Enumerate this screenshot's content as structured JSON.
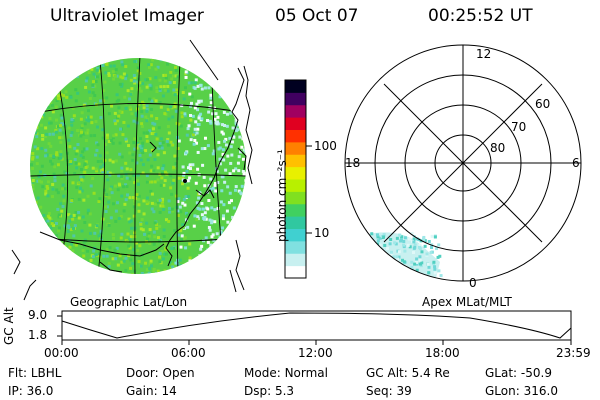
{
  "header": {
    "instrument": "Ultraviolet Imager",
    "date": "05 Oct 07",
    "time": "00:25:52 UT"
  },
  "colorbar": {
    "label": "photon cm⁻²s⁻¹",
    "ticks": [
      "100",
      "10"
    ],
    "colors": [
      "#ffffff",
      "#c8f0f0",
      "#80e0e0",
      "#40d0d0",
      "#30c8a0",
      "#40d060",
      "#80e020",
      "#b8f000",
      "#e8f000",
      "#ffc000",
      "#ff8000",
      "#ff3000",
      "#e00020",
      "#a00060",
      "#400060",
      "#000020"
    ]
  },
  "geo_panel": {
    "label": "Geographic Lat/Lon"
  },
  "polar_panel": {
    "label": "Apex MLat/MLT",
    "mlt_labels": {
      "top": "12",
      "left": "18",
      "right": "6",
      "bottom": "0"
    },
    "lat_labels": [
      "60",
      "70",
      "80"
    ]
  },
  "altitude_strip": {
    "axis_label": "GC Alt",
    "ymax": "9.0",
    "ymin": "1.8",
    "time_ticks": [
      "00:00",
      "06:00",
      "12:00",
      "18:00",
      "23:59"
    ]
  },
  "status": {
    "row1": [
      {
        "key": "Flt:",
        "value": "LBHL"
      },
      {
        "key": "Door:",
        "value": "Open"
      },
      {
        "key": "Mode:",
        "value": "Normal"
      },
      {
        "key": "GC Alt:",
        "value": "5.4 Re"
      },
      {
        "key": "GLat:",
        "value": "-50.9"
      }
    ],
    "row2": [
      {
        "key": "IP:",
        "value": "36.0"
      },
      {
        "key": "Gain:",
        "value": "14"
      },
      {
        "key": "Dsp:",
        "value": "5.3"
      },
      {
        "key": "Seq:",
        "value": "39"
      },
      {
        "key": "GLon:",
        "value": "316.0"
      }
    ]
  }
}
